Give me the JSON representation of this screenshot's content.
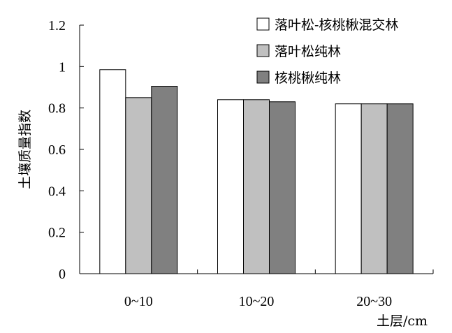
{
  "chart_data": {
    "type": "bar",
    "title": "",
    "xlabel": "土层/cm",
    "ylabel": "土壤质量指数",
    "ylim": [
      0,
      1.2
    ],
    "yticks": [
      "0",
      "0.2",
      "0.4",
      "0.6",
      "0.8",
      "1",
      "1.2"
    ],
    "ytick_values": [
      0,
      0.2,
      0.4,
      0.6,
      0.8,
      1.0,
      1.2
    ],
    "categories": [
      "0~10",
      "10~20",
      "20~30"
    ],
    "series": [
      {
        "name": "落叶松-核桃楸混交林",
        "color": "#ffffff",
        "values": [
          0.985,
          0.84,
          0.82
        ]
      },
      {
        "name": "落叶松纯林",
        "color": "#c0c0c0",
        "values": [
          0.85,
          0.84,
          0.82
        ]
      },
      {
        "name": "核桃楸纯林",
        "color": "#808080",
        "values": [
          0.905,
          0.83,
          0.82
        ]
      }
    ],
    "legend_position": "top-right",
    "grid": false
  }
}
